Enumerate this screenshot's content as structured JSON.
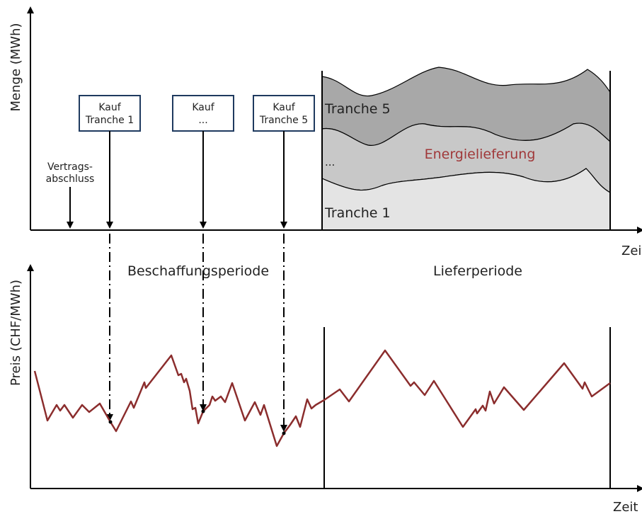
{
  "top_chart": {
    "ylabel": "Menge (MWh)",
    "xlabel": "Zeit",
    "contract": {
      "line1": "Vertrags-",
      "line2": "abschluss"
    },
    "purchases": [
      {
        "line1": "Kauf",
        "line2": "Tranche 1"
      },
      {
        "line1": "Kauf",
        "line2": "..."
      },
      {
        "line1": "Kauf",
        "line2": "Tranche 5"
      }
    ],
    "tranche_top": "Tranche 5",
    "tranche_mid": "...",
    "tranche_bottom": "Tranche 1",
    "delivery_label": "Energielieferung"
  },
  "periods": {
    "procurement": "Beschaffungsperiode",
    "delivery": "Lieferperiode"
  },
  "bottom_chart": {
    "ylabel": "Preis (CHF/MWh)",
    "xlabel": "Zeit"
  },
  "colors": {
    "price_line": "#8b2d2d",
    "energy_label": "#a0393a",
    "box_border": "#1f3a5f",
    "layer_dark": "#a8a8a8",
    "layer_mid": "#c8c8c8",
    "layer_light": "#e4e4e4"
  }
}
